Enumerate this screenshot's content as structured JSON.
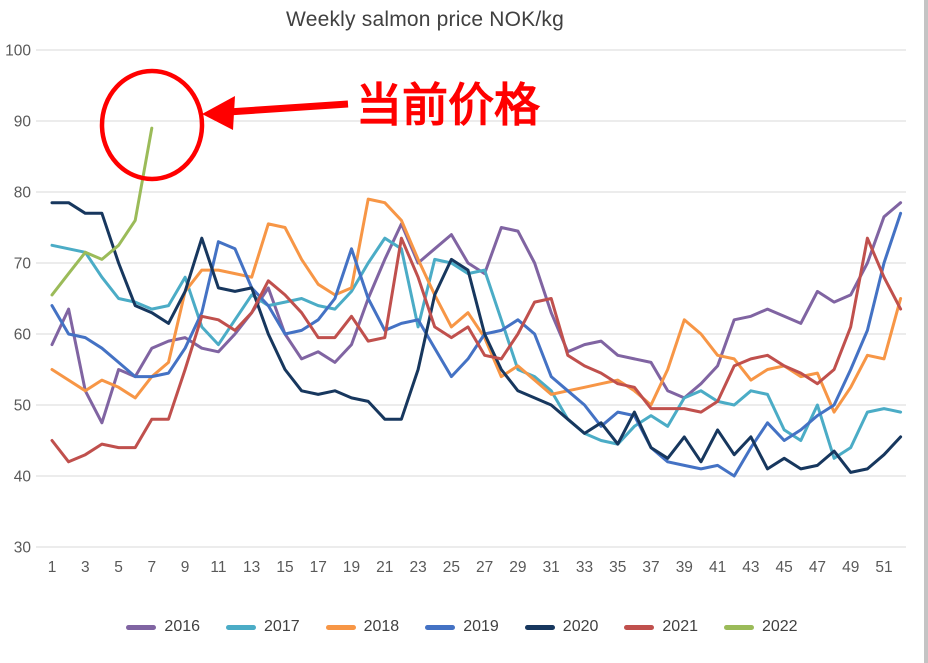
{
  "title": "Weekly salmon price NOK/kg",
  "annotation": {
    "label": "当前价格",
    "color": "#FF0000",
    "target": "2022 price peak, week 7, ~89 NOK/kg"
  },
  "chart_data": {
    "type": "line",
    "title": "Weekly salmon price NOK/kg",
    "xlabel": "",
    "ylabel": "",
    "grid": true,
    "legend_position": "bottom",
    "ylim": [
      30,
      100
    ],
    "y_ticks": [
      30,
      40,
      50,
      60,
      70,
      80,
      90,
      100
    ],
    "x_label_ticks": [
      1,
      3,
      5,
      7,
      9,
      11,
      13,
      15,
      17,
      19,
      21,
      23,
      25,
      27,
      29,
      31,
      33,
      35,
      37,
      39,
      41,
      43,
      45,
      47,
      49,
      51
    ],
    "x_unit": "week",
    "series": [
      {
        "name": "2016",
        "color": "#8064A2",
        "values": [
          58.5,
          63.5,
          52,
          47.5,
          55,
          54,
          58,
          59,
          59.5,
          58,
          57.5,
          60,
          63,
          66.5,
          60,
          56.5,
          57.5,
          56,
          58.5,
          65,
          70.5,
          75.5,
          70,
          72,
          74,
          70,
          68.5,
          75,
          74.5,
          70,
          63,
          57.5,
          58.5,
          59,
          57,
          56.5,
          56,
          52,
          51,
          53,
          55.5,
          62,
          62.5,
          63.5,
          62.5,
          61.5,
          66,
          64.5,
          65.5,
          70,
          76.5,
          78.5
        ]
      },
      {
        "name": "2017",
        "color": "#4BACC6",
        "values": [
          72.5,
          72,
          71.5,
          68,
          65,
          64.5,
          63.5,
          64,
          68,
          61,
          58.5,
          62,
          65.5,
          64,
          64.5,
          65,
          64,
          63.5,
          66,
          70,
          73.5,
          72,
          61,
          70.5,
          70,
          68.5,
          69,
          62,
          55,
          54,
          52,
          48,
          46,
          45,
          44.5,
          47,
          48.5,
          47,
          51,
          52,
          50.5,
          50,
          52,
          51.5,
          46.5,
          45,
          50,
          42.5,
          44,
          49,
          49.5,
          49
        ]
      },
      {
        "name": "2018",
        "color": "#F79646",
        "values": [
          55,
          53.5,
          52,
          53.5,
          52.5,
          51,
          54,
          56,
          66,
          69,
          69,
          68.5,
          68,
          75.5,
          75,
          70.5,
          67,
          65.5,
          66.5,
          79,
          78.5,
          76,
          70.5,
          65.5,
          61,
          63,
          59.5,
          54,
          55.5,
          53.5,
          51.5,
          52,
          52.5,
          53,
          53.5,
          52,
          50,
          55,
          62,
          60,
          57,
          56.5,
          53.5,
          55,
          55.5,
          54,
          54.5,
          49,
          52.5,
          57,
          56.5,
          65
        ]
      },
      {
        "name": "2019",
        "color": "#4472C4",
        "values": [
          64,
          60,
          59.5,
          58,
          56,
          54,
          54,
          54.5,
          58,
          63,
          73,
          72,
          66.5,
          64,
          60,
          60.5,
          62,
          65,
          72,
          65,
          60.5,
          61.5,
          62,
          58,
          54,
          56.5,
          60,
          60.5,
          62,
          60,
          54,
          52,
          50,
          47,
          49,
          48.5,
          44,
          42,
          41.5,
          41,
          41.5,
          40,
          44,
          47.5,
          45,
          46.5,
          48.5,
          50,
          55,
          60.5,
          70,
          77
        ]
      },
      {
        "name": "2020",
        "color": "#17375E",
        "values": [
          78.5,
          78.5,
          77,
          77,
          70,
          64,
          63,
          61.5,
          66,
          73.5,
          66.5,
          66,
          66.5,
          60,
          55,
          52,
          51.5,
          52,
          51,
          50.5,
          48,
          48,
          55,
          65.5,
          70.5,
          69,
          60,
          55,
          52,
          51,
          50,
          48,
          46,
          47.5,
          44.5,
          49,
          44,
          42.5,
          45.5,
          42,
          46.5,
          43,
          45.5,
          41,
          42.5,
          41,
          41.5,
          43.5,
          40.5,
          41,
          43,
          45.5
        ]
      },
      {
        "name": "2021",
        "color": "#C0504D",
        "values": [
          45,
          42,
          43,
          44.5,
          44,
          44,
          48,
          48,
          55,
          62.5,
          62,
          60.5,
          63,
          67.5,
          65.5,
          63,
          59.5,
          59.5,
          62.5,
          59,
          59.5,
          73.5,
          68,
          61,
          59.5,
          61,
          57,
          56.5,
          60,
          64.5,
          65,
          57,
          55.5,
          54.5,
          53,
          52.5,
          49.5,
          49.5,
          49.5,
          49,
          50.5,
          55.5,
          56.5,
          57,
          55.5,
          54.5,
          53,
          55,
          61,
          73.5,
          68,
          63.5
        ]
      },
      {
        "name": "2022",
        "color": "#9BBB59",
        "values": [
          65.5,
          68.5,
          71.5,
          70.5,
          72.5,
          76,
          89
        ]
      }
    ]
  }
}
